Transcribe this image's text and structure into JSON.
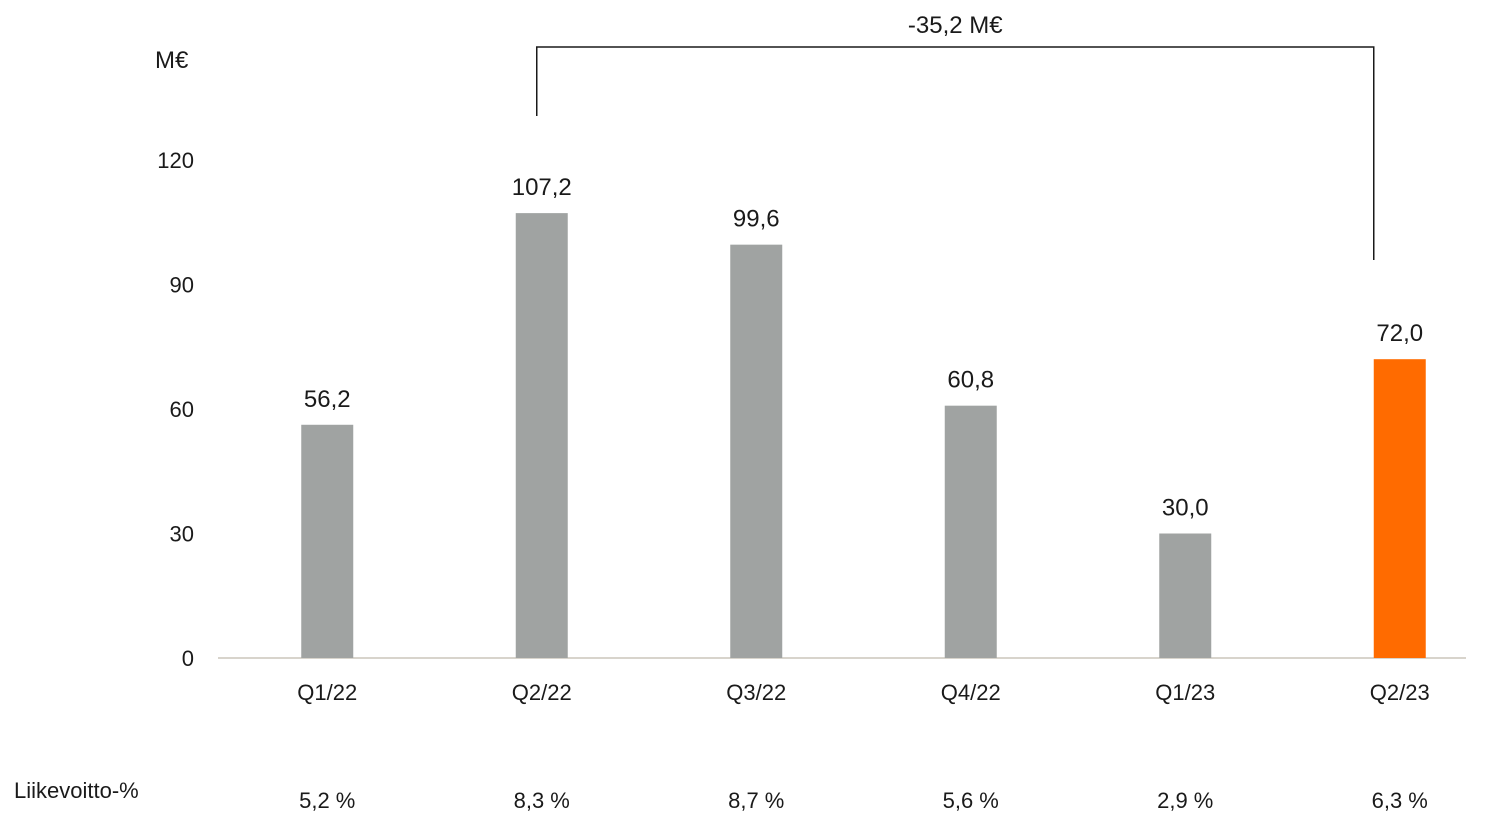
{
  "chart_data": {
    "type": "bar",
    "unit_label": "M€",
    "categories": [
      "Q1/22",
      "Q2/22",
      "Q3/22",
      "Q4/22",
      "Q1/23",
      "Q2/23"
    ],
    "values": [
      56.2,
      107.2,
      99.6,
      60.8,
      30.0,
      72.0
    ],
    "value_labels": [
      "56,2",
      "107,2",
      "99,6",
      "60,8",
      "30,0",
      "72,0"
    ],
    "bar_colors": [
      "#a0a3a2",
      "#a0a3a2",
      "#a0a3a2",
      "#a0a3a2",
      "#a0a3a2",
      "#ff6b00"
    ],
    "ylim": [
      0,
      120
    ],
    "yticks": [
      0,
      30,
      60,
      90,
      120
    ],
    "ytick_labels": [
      "0",
      "30",
      "60",
      "90",
      "120"
    ],
    "grid": false,
    "legend": "none",
    "annotation": {
      "text": "-35,2 M€",
      "from_category": "Q2/22",
      "to_category": "Q2/23"
    },
    "footer_row": {
      "label": "Liikevoitto-%",
      "values": [
        "5,2 %",
        "8,3 %",
        "8,7 %",
        "5,6 %",
        "2,9 %",
        "6,3 %"
      ]
    }
  }
}
